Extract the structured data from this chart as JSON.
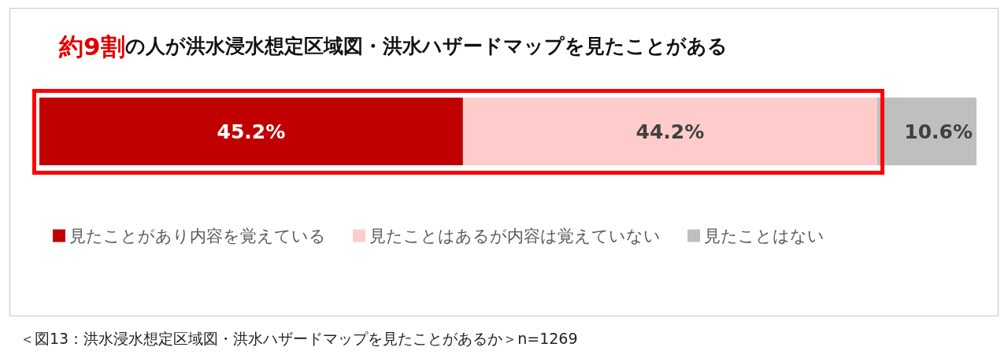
{
  "chart_data": {
    "type": "bar",
    "title": "約9割の人が洪水浸水想定区域図・洪水ハザードマップを見たことがある",
    "orientation": "horizontal",
    "stacked": true,
    "tick_labels": false,
    "legend": "bottom left",
    "categories": [
      null
    ],
    "series": [
      {
        "name": "見たことがあり内容を覚えている",
        "color": "#c00000",
        "values": [
          45.2
        ],
        "value_labels": [
          "45.2%"
        ]
      },
      {
        "name": "見たことはあるが内容は覚えていない",
        "color": "#ffcccc",
        "values": [
          44.2
        ],
        "value_labels": [
          "44.2%"
        ]
      },
      {
        "name": "見たことはない",
        "color": "#bfbfbf",
        "values": [
          10.6
        ],
        "value_labels": [
          "10.6%"
        ]
      }
    ],
    "annotations": [
      "＜図13：洪水浸水想定区域図・洪水ハザードマップを見たことがあるか＞n=1269"
    ]
  }
}
